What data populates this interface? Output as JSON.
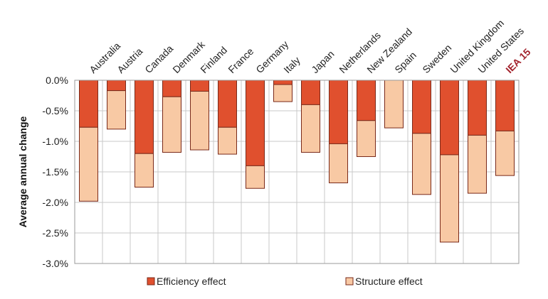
{
  "chart_data": {
    "type": "bar",
    "stacked": true,
    "categories": [
      "Australia",
      "Austria",
      "Canada",
      "Denmark",
      "Finland",
      "France",
      "Germany",
      "Italy",
      "Japan",
      "Netherlands",
      "New Zealand",
      "Spain",
      "Sweden",
      "United Kingdom",
      "United States",
      "IEA 15"
    ],
    "highlight_category": "IEA 15",
    "series": [
      {
        "name": "Efficiency effect",
        "color": "#e0502e",
        "values": [
          -0.77,
          -0.17,
          -1.2,
          -0.27,
          -0.18,
          -0.77,
          -1.4,
          -0.07,
          -0.4,
          -1.04,
          -0.66,
          0.0,
          -0.87,
          -1.22,
          -0.9,
          -0.83
        ]
      },
      {
        "name": "Structure effect",
        "color": "#f8c9a4",
        "values": [
          -1.21,
          -0.63,
          -0.55,
          -0.91,
          -0.96,
          -0.44,
          -0.37,
          -0.28,
          -0.78,
          -0.64,
          -0.59,
          -0.78,
          -1.0,
          -1.43,
          -0.95,
          -0.73
        ]
      }
    ],
    "ylabel": "Average annual change",
    "ylim": [
      -3.0,
      0.0
    ],
    "yticks": [
      "0.0%",
      "-0.5%",
      "-1.0%",
      "-1.5%",
      "-2.0%",
      "-2.5%",
      "-3.0%"
    ],
    "grid": true,
    "legend_position": "bottom"
  }
}
